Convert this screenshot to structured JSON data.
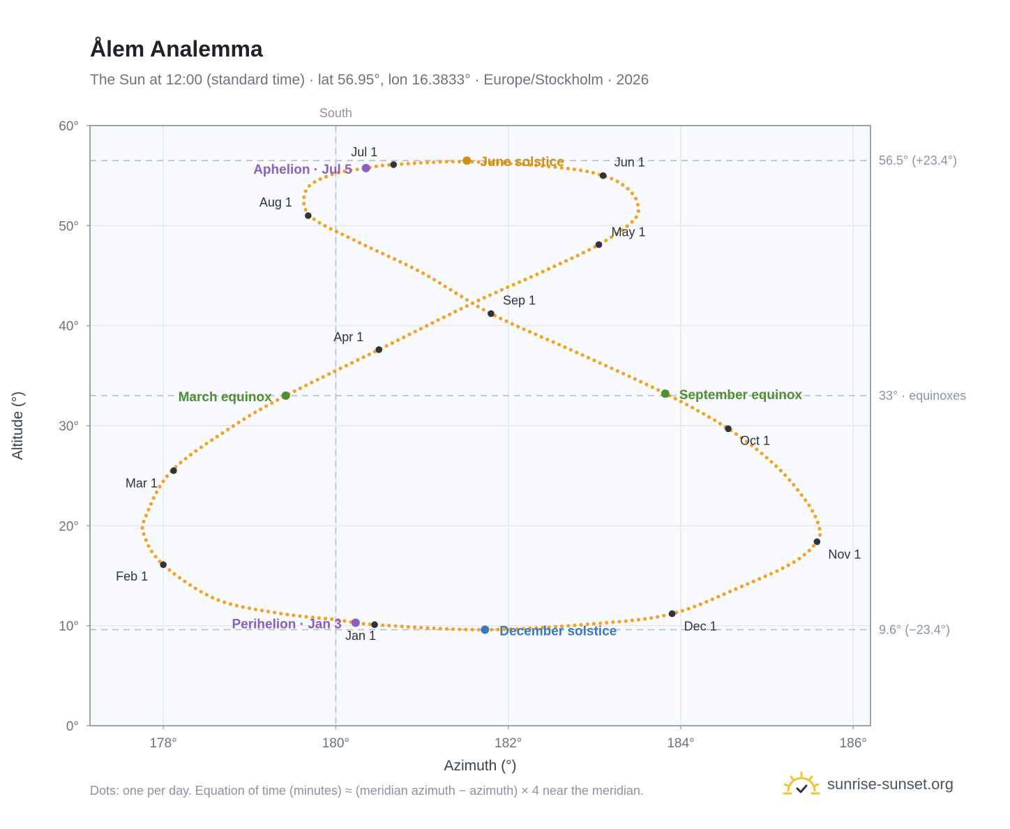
{
  "header": {
    "title": "Ålem Analemma",
    "subtitle": "The Sun at 12:00 (standard time) · lat 56.95°, lon 16.3833° · Europe/Stockholm · 2026"
  },
  "footer": {
    "note": "Dots: one per day. Equation of time (minutes) ≈ (meridian azimuth − azimuth) × 4 near the meridian.",
    "brand": "sunrise-sunset.org",
    "brand_icon": "sun-logo-icon"
  },
  "colors": {
    "curve": "#f2a324",
    "month_marker": "#2f343b",
    "june_solstice": "#cf8f12",
    "december_solstice": "#3b78c0",
    "equinox": "#4f8f32",
    "apsis": "#8b5fbf",
    "plot_bg": "#f8fafd",
    "grid": "#e3e8ee",
    "reference_line": "#b9c2cd",
    "axis_frame": "#9aa4b0"
  },
  "chart_data": {
    "type": "scatter",
    "xlabel": "Azimuth (°)",
    "ylabel": "Altitude (°)",
    "xlim": [
      177.15,
      186.2
    ],
    "ylim": [
      0,
      60
    ],
    "x_ticks": [
      178,
      180,
      182,
      184,
      186
    ],
    "x_tick_labels": [
      "178°",
      "180°",
      "182°",
      "184°",
      "186°"
    ],
    "y_ticks": [
      0,
      10,
      20,
      30,
      40,
      50,
      60
    ],
    "y_tick_labels": [
      "0°",
      "10°",
      "20°",
      "30°",
      "40°",
      "50°",
      "60°"
    ],
    "grid": true,
    "meridian": {
      "azimuth": 180,
      "label": "South"
    },
    "reference_lines": [
      {
        "altitude": 56.5,
        "label": "56.5° (+23.4°)"
      },
      {
        "altitude": 33,
        "label": "33° · equinoxes"
      },
      {
        "altitude": 9.6,
        "label": "9.6° (−23.4°)"
      }
    ],
    "series": [
      {
        "marker": "daily dots",
        "points": [
          [
            180.47,
            10.1
          ],
          [
            180.0,
            10.6
          ],
          [
            179.3,
            11.3
          ],
          [
            178.6,
            12.7
          ],
          [
            178.0,
            16.1
          ],
          [
            177.78,
            19.0
          ],
          [
            177.8,
            21.0
          ],
          [
            178.1,
            25.5
          ],
          [
            178.8,
            29.9
          ],
          [
            179.42,
            33.0
          ],
          [
            180.5,
            37.6
          ],
          [
            181.6,
            42.3
          ],
          [
            182.4,
            45.4
          ],
          [
            183.05,
            48.1
          ],
          [
            183.45,
            50.5
          ],
          [
            183.5,
            52.2
          ],
          [
            183.37,
            53.8
          ],
          [
            183.1,
            55.0
          ],
          [
            182.6,
            55.8
          ],
          [
            181.52,
            56.4
          ],
          [
            180.67,
            56.1
          ],
          [
            180.35,
            55.75
          ],
          [
            179.95,
            55.1
          ],
          [
            179.66,
            53.6
          ],
          [
            179.7,
            51.0
          ],
          [
            180.25,
            48.4
          ],
          [
            181.0,
            45.3
          ],
          [
            181.8,
            41.2
          ],
          [
            182.8,
            37.3
          ],
          [
            183.8,
            33.3
          ],
          [
            184.55,
            29.7
          ],
          [
            185.1,
            26.0
          ],
          [
            185.45,
            22.5
          ],
          [
            185.6,
            20.0
          ],
          [
            185.58,
            18.4
          ],
          [
            185.3,
            16.3
          ],
          [
            184.7,
            13.9
          ],
          [
            183.9,
            11.2
          ],
          [
            183.0,
            10.2
          ],
          [
            181.73,
            9.6
          ],
          [
            180.47,
            10.1
          ]
        ]
      }
    ],
    "month_markers": [
      {
        "label": "Jan 1",
        "azimuth": 180.45,
        "altitude": 10.1
      },
      {
        "label": "Feb 1",
        "azimuth": 178.0,
        "altitude": 16.1
      },
      {
        "label": "Mar 1",
        "azimuth": 178.12,
        "altitude": 25.5
      },
      {
        "label": "Apr 1",
        "azimuth": 180.5,
        "altitude": 37.6
      },
      {
        "label": "May 1",
        "azimuth": 183.05,
        "altitude": 48.1
      },
      {
        "label": "Jun 1",
        "azimuth": 183.1,
        "altitude": 55.0
      },
      {
        "label": "Jul 1",
        "azimuth": 180.67,
        "altitude": 56.1
      },
      {
        "label": "Aug 1",
        "azimuth": 179.68,
        "altitude": 51.0
      },
      {
        "label": "Sep 1",
        "azimuth": 181.8,
        "altitude": 41.2
      },
      {
        "label": "Oct 1",
        "azimuth": 184.55,
        "altitude": 29.7
      },
      {
        "label": "Nov 1",
        "azimuth": 185.58,
        "altitude": 18.4
      },
      {
        "label": "Dec 1",
        "azimuth": 183.9,
        "altitude": 11.2
      }
    ],
    "events": [
      {
        "label": "June solstice",
        "azimuth": 181.52,
        "altitude": 56.5,
        "color_key": "june_solstice"
      },
      {
        "label": "December solstice",
        "azimuth": 181.73,
        "altitude": 9.6,
        "color_key": "december_solstice"
      },
      {
        "label": "March equinox",
        "azimuth": 179.42,
        "altitude": 33.0,
        "color_key": "equinox"
      },
      {
        "label": "September equinox",
        "azimuth": 183.82,
        "altitude": 33.2,
        "color_key": "equinox"
      },
      {
        "label": "Aphelion · Jul 5",
        "azimuth": 180.35,
        "altitude": 55.75,
        "color_key": "apsis"
      },
      {
        "label": "Perihelion · Jan 3",
        "azimuth": 180.23,
        "altitude": 10.3,
        "color_key": "apsis"
      }
    ]
  }
}
